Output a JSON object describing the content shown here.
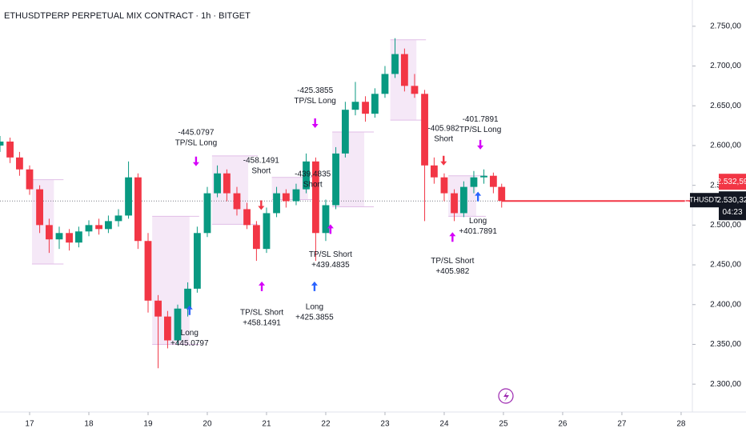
{
  "chart_data": {
    "type": "candlestick",
    "title": "ETHUSDTPERP PERPETUAL MIX CONTRACT · 1h · BITGET",
    "x": [
      16.5,
      16.67,
      16.83,
      17,
      17.17,
      17.33,
      17.5,
      17.67,
      17.83,
      18,
      18.17,
      18.33,
      18.5,
      18.67,
      18.83,
      19,
      19.17,
      19.33,
      19.5,
      19.67,
      19.83,
      20,
      20.17,
      20.33,
      20.5,
      20.67,
      20.83,
      21,
      21.17,
      21.33,
      21.5,
      21.67,
      21.83,
      22,
      22.17,
      22.33,
      22.5,
      22.67,
      22.83,
      23,
      23.17,
      23.33,
      23.5,
      23.67,
      23.83,
      24,
      24.17,
      24.33,
      24.5,
      24.67,
      24.83,
      24.97
    ],
    "open": [
      2600,
      2605,
      2585,
      2570,
      2545,
      2500,
      2482,
      2490,
      2478,
      2492,
      2500,
      2495,
      2505,
      2512,
      2560,
      2480,
      2405,
      2385,
      2355,
      2395,
      2420,
      2490,
      2540,
      2565,
      2540,
      2520,
      2500,
      2470,
      2515,
      2540,
      2530,
      2545,
      2580,
      2490,
      2525,
      2590,
      2645,
      2655,
      2640,
      2665,
      2690,
      2715,
      2675,
      2665,
      2575,
      2560,
      2540,
      2515,
      2548,
      2560,
      2562,
      2548
    ],
    "high": [
      2612,
      2610,
      2592,
      2575,
      2550,
      2508,
      2498,
      2495,
      2498,
      2506,
      2508,
      2512,
      2520,
      2580,
      2565,
      2490,
      2412,
      2392,
      2400,
      2428,
      2498,
      2548,
      2575,
      2570,
      2548,
      2528,
      2505,
      2522,
      2548,
      2545,
      2552,
      2590,
      2585,
      2532,
      2598,
      2655,
      2680,
      2662,
      2672,
      2700,
      2735,
      2722,
      2690,
      2670,
      2585,
      2565,
      2545,
      2555,
      2568,
      2570,
      2566,
      2552
    ],
    "low": [
      2592,
      2578,
      2562,
      2538,
      2490,
      2465,
      2470,
      2468,
      2472,
      2486,
      2488,
      2490,
      2498,
      2508,
      2470,
      2390,
      2320,
      2345,
      2350,
      2385,
      2415,
      2485,
      2535,
      2530,
      2512,
      2495,
      2455,
      2465,
      2510,
      2522,
      2525,
      2540,
      2455,
      2480,
      2520,
      2585,
      2638,
      2630,
      2635,
      2660,
      2685,
      2668,
      2660,
      2505,
      2552,
      2530,
      2505,
      2510,
      2540,
      2552,
      2540,
      2522
    ],
    "close": [
      2605,
      2585,
      2570,
      2545,
      2500,
      2482,
      2490,
      2478,
      2492,
      2500,
      2495,
      2505,
      2512,
      2560,
      2480,
      2405,
      2385,
      2355,
      2395,
      2420,
      2490,
      2540,
      2565,
      2540,
      2520,
      2500,
      2470,
      2515,
      2540,
      2530,
      2545,
      2580,
      2490,
      2525,
      2590,
      2645,
      2655,
      2640,
      2665,
      2690,
      2715,
      2675,
      2665,
      2575,
      2560,
      2540,
      2515,
      2548,
      2560,
      2562,
      2548,
      2530.32
    ],
    "up_color": "#089981",
    "down_color": "#f23645",
    "xlim": [
      16.5,
      28.19
    ],
    "xticks": [
      17,
      18,
      19,
      20,
      21,
      22,
      23,
      24,
      25,
      26,
      27,
      28
    ],
    "ylim": [
      2270,
      2783
    ],
    "yticks": [
      {
        "value": 2300,
        "label": "2.300,00"
      },
      {
        "value": 2350,
        "label": "2.350,00"
      },
      {
        "value": 2400,
        "label": "2.400,00"
      },
      {
        "value": 2450,
        "label": "2.450,00"
      },
      {
        "value": 2500,
        "label": "2.500,00"
      },
      {
        "value": 2550,
        "label": "2.550,00"
      },
      {
        "value": 2600,
        "label": "2.600,00"
      },
      {
        "value": 2650,
        "label": "2.650,00"
      },
      {
        "value": 2700,
        "label": "2.700,00"
      },
      {
        "value": 2750,
        "label": "2.750,00"
      }
    ],
    "grid": false,
    "boxes": [
      {
        "x": [
          17.04,
          17.41
        ],
        "y": [
          2451,
          2557
        ]
      },
      {
        "x": [
          19.07,
          19.7
        ],
        "y": [
          2350,
          2511
        ]
      },
      {
        "x": [
          20.08,
          20.69
        ],
        "y": [
          2501,
          2587
        ]
      },
      {
        "x": [
          21.09,
          21.7
        ],
        "y": [
          2532,
          2560
        ]
      },
      {
        "x": [
          22.11,
          22.65
        ],
        "y": [
          2523,
          2617
        ]
      },
      {
        "x": [
          23.09,
          23.53
        ],
        "y": [
          2632,
          2733
        ]
      },
      {
        "x": [
          24.07,
          24.54
        ],
        "y": [
          2511,
          2562
        ]
      }
    ],
    "box_color": "#e1bee7",
    "annotations": [
      {
        "lines": [
          "-445.0797",
          "TP/SL Long"
        ],
        "x": 19.81,
        "y": 2622
      },
      {
        "lines": [
          "Long",
          "+445.0797"
        ],
        "x": 19.7,
        "y": 2370
      },
      {
        "lines": [
          "-458.1491",
          "Short"
        ],
        "x": 20.91,
        "y": 2587
      },
      {
        "lines": [
          "TP/SL Short",
          "+458.1491"
        ],
        "x": 20.92,
        "y": 2396
      },
      {
        "lines": [
          "-425.3855",
          "TP/SL Long"
        ],
        "x": 21.82,
        "y": 2675
      },
      {
        "lines": [
          "-439.4835",
          "Short"
        ],
        "x": 21.78,
        "y": 2570
      },
      {
        "lines": [
          "TP/SL Short",
          "+439.4835"
        ],
        "x": 22.08,
        "y": 2469
      },
      {
        "lines": [
          "Long",
          "+425.3855"
        ],
        "x": 21.81,
        "y": 2403
      },
      {
        "lines": [
          "-405.982",
          "Short"
        ],
        "x": 23.99,
        "y": 2627
      },
      {
        "lines": [
          "-401.7891",
          "TP/SL Long"
        ],
        "x": 24.61,
        "y": 2639
      },
      {
        "lines": [
          "Long",
          "+401.7891"
        ],
        "x": 24.57,
        "y": 2511
      },
      {
        "lines": [
          "TP/SL Short",
          "+405.982"
        ],
        "x": 24.14,
        "y": 2461
      }
    ],
    "signals": [
      {
        "x": 19.81,
        "y": 2574,
        "dir": "down",
        "color": "#d500f9"
      },
      {
        "x": 21.82,
        "y": 2622,
        "dir": "down",
        "color": "#d500f9"
      },
      {
        "x": 24.61,
        "y": 2595,
        "dir": "down",
        "color": "#d500f9"
      },
      {
        "x": 20.91,
        "y": 2519,
        "dir": "down",
        "color": "#f23645"
      },
      {
        "x": 23.99,
        "y": 2575,
        "dir": "down",
        "color": "#f23645"
      },
      {
        "x": 19.7,
        "y": 2399,
        "dir": "up",
        "color": "#2962ff"
      },
      {
        "x": 21.81,
        "y": 2429,
        "dir": "up",
        "color": "#2962ff"
      },
      {
        "x": 24.57,
        "y": 2542,
        "dir": "up",
        "color": "#2962ff"
      },
      {
        "x": 20.92,
        "y": 2429,
        "dir": "up",
        "color": "#d500f9"
      },
      {
        "x": 22.08,
        "y": 2501,
        "dir": "up",
        "color": "#d500f9"
      },
      {
        "x": 24.14,
        "y": 2491,
        "dir": "up",
        "color": "#d500f9"
      }
    ],
    "symbol": "ETHUSDT.P",
    "last_price": {
      "value": 2530.32,
      "label": "2.530,32"
    },
    "mark_price": {
      "value": 2532.59,
      "label": "2.532,59"
    },
    "countdown": "04:23"
  }
}
